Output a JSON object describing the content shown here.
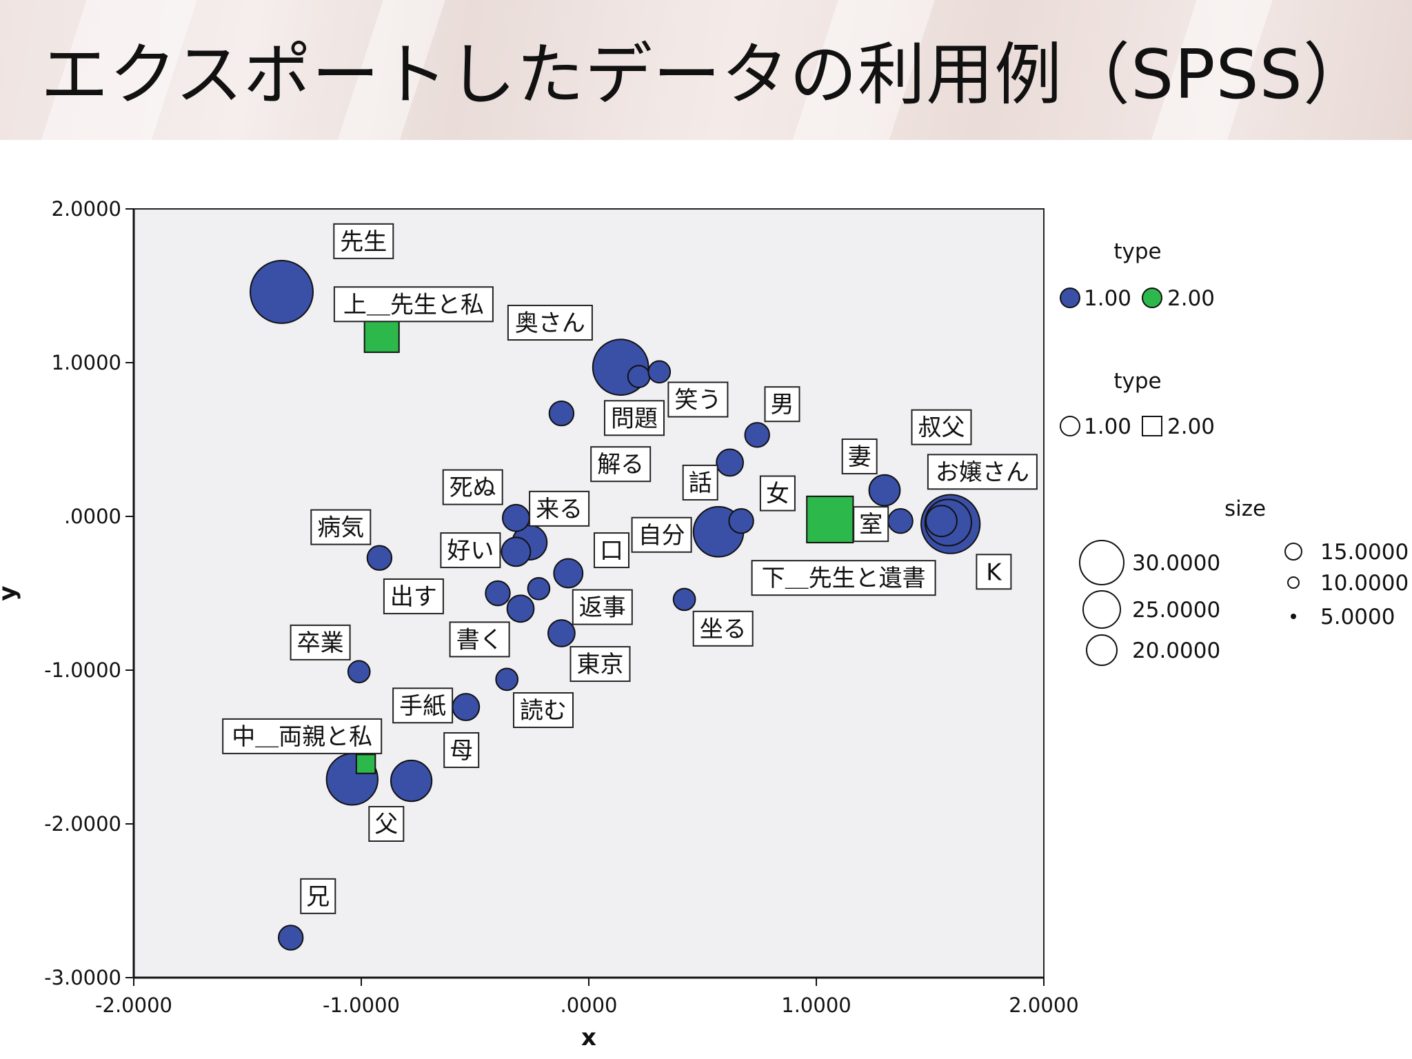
{
  "slide": {
    "title": "エクスポートしたデータの利用例（SPSS）"
  },
  "colors": {
    "type1_fill": "#3a4fa6",
    "type2_fill": "#2db84b",
    "plot_bg": "#f0f0f2",
    "outline": "#111111"
  },
  "chart_data": {
    "type": "scatter",
    "title": "",
    "xlabel": "x",
    "ylabel": "y",
    "xlim": [
      -2,
      2
    ],
    "ylim": [
      -3,
      2
    ],
    "xticks": [
      "-2.0000",
      "-1.0000",
      ".0000",
      "1.0000",
      "2.0000"
    ],
    "yticks": [
      "2.0000",
      "1.0000",
      ".0000",
      "-1.0000",
      "-2.0000",
      "-3.0000"
    ],
    "points": [
      {
        "x": -1.35,
        "y": 1.46,
        "size": 33,
        "type": 1
      },
      {
        "x": -0.91,
        "y": 1.18,
        "size": 10,
        "type": 2
      },
      {
        "x": 0.14,
        "y": 0.97,
        "size": 26,
        "type": 1
      },
      {
        "x": 0.22,
        "y": 0.91,
        "size": 4,
        "type": 1
      },
      {
        "x": 0.31,
        "y": 0.94,
        "size": 4,
        "type": 1
      },
      {
        "x": -0.12,
        "y": 0.67,
        "size": 5,
        "type": 1
      },
      {
        "x": 0.74,
        "y": 0.53,
        "size": 5,
        "type": 1
      },
      {
        "x": 0.62,
        "y": 0.35,
        "size": 6,
        "type": 1
      },
      {
        "x": 1.3,
        "y": 0.17,
        "size": 8,
        "type": 1
      },
      {
        "x": 1.37,
        "y": -0.03,
        "size": 5,
        "type": 1
      },
      {
        "x": 1.59,
        "y": -0.05,
        "size": 29,
        "type": 1
      },
      {
        "x": 1.58,
        "y": -0.04,
        "size": 18,
        "type": 1
      },
      {
        "x": 1.55,
        "y": -0.03,
        "size": 8,
        "type": 1
      },
      {
        "x": 0.57,
        "y": -0.1,
        "size": 21,
        "type": 1
      },
      {
        "x": 0.67,
        "y": -0.03,
        "size": 5,
        "type": 1
      },
      {
        "x": 1.06,
        "y": -0.02,
        "size": 18,
        "type": 2
      },
      {
        "x": -0.32,
        "y": -0.01,
        "size": 6,
        "type": 1
      },
      {
        "x": -0.26,
        "y": -0.17,
        "size": 10,
        "type": 1
      },
      {
        "x": -0.32,
        "y": -0.23,
        "size": 7,
        "type": 1
      },
      {
        "x": -0.92,
        "y": -0.27,
        "size": 5,
        "type": 1
      },
      {
        "x": -0.09,
        "y": -0.37,
        "size": 7,
        "type": 1
      },
      {
        "x": -0.4,
        "y": -0.5,
        "size": 5,
        "type": 1
      },
      {
        "x": -0.22,
        "y": -0.47,
        "size": 4,
        "type": 1
      },
      {
        "x": -0.3,
        "y": -0.6,
        "size": 6,
        "type": 1
      },
      {
        "x": 0.42,
        "y": -0.54,
        "size": 4,
        "type": 1
      },
      {
        "x": -0.12,
        "y": -0.76,
        "size": 6,
        "type": 1
      },
      {
        "x": -1.01,
        "y": -1.01,
        "size": 4,
        "type": 1
      },
      {
        "x": -0.36,
        "y": -1.06,
        "size": 4,
        "type": 1
      },
      {
        "x": -0.54,
        "y": -1.24,
        "size": 6,
        "type": 1
      },
      {
        "x": -1.04,
        "y": -1.71,
        "size": 22,
        "type": 1
      },
      {
        "x": -0.78,
        "y": -1.72,
        "size": 14,
        "type": 1
      },
      {
        "x": -0.98,
        "y": -1.61,
        "size": 3,
        "type": 2
      },
      {
        "x": -1.31,
        "y": -2.74,
        "size": 5,
        "type": 1
      }
    ],
    "labels": [
      {
        "text": "先生",
        "x": -0.99,
        "y": 1.79
      },
      {
        "text": "上＿先生と私",
        "x": -0.77,
        "y": 1.38
      },
      {
        "text": "奥さん",
        "x": -0.17,
        "y": 1.26
      },
      {
        "text": "笑う",
        "x": 0.48,
        "y": 0.76
      },
      {
        "text": "男",
        "x": 0.85,
        "y": 0.73
      },
      {
        "text": "問題",
        "x": 0.2,
        "y": 0.64
      },
      {
        "text": "叔父",
        "x": 1.55,
        "y": 0.58
      },
      {
        "text": "解る",
        "x": 0.14,
        "y": 0.34
      },
      {
        "text": "妻",
        "x": 1.19,
        "y": 0.39
      },
      {
        "text": "お嬢さん",
        "x": 1.73,
        "y": 0.29
      },
      {
        "text": "話",
        "x": 0.49,
        "y": 0.22
      },
      {
        "text": "女",
        "x": 0.83,
        "y": 0.15
      },
      {
        "text": "死ぬ",
        "x": -0.51,
        "y": 0.19
      },
      {
        "text": "来る",
        "x": -0.13,
        "y": 0.05
      },
      {
        "text": "病気",
        "x": -1.09,
        "y": -0.07
      },
      {
        "text": "室",
        "x": 1.24,
        "y": -0.05
      },
      {
        "text": "自分",
        "x": 0.32,
        "y": -0.12
      },
      {
        "text": "好い",
        "x": -0.52,
        "y": -0.22
      },
      {
        "text": "口",
        "x": 0.1,
        "y": -0.22
      },
      {
        "text": "下＿先生と遺書",
        "x": 1.12,
        "y": -0.4
      },
      {
        "text": "K",
        "x": 1.78,
        "y": -0.36
      },
      {
        "text": "出す",
        "x": -0.77,
        "y": -0.52
      },
      {
        "text": "返事",
        "x": 0.06,
        "y": -0.59
      },
      {
        "text": "坐る",
        "x": 0.59,
        "y": -0.73
      },
      {
        "text": "卒業",
        "x": -1.18,
        "y": -0.82
      },
      {
        "text": "書く",
        "x": -0.48,
        "y": -0.8
      },
      {
        "text": "東京",
        "x": 0.05,
        "y": -0.96
      },
      {
        "text": "手紙",
        "x": -0.73,
        "y": -1.23
      },
      {
        "text": "読む",
        "x": -0.2,
        "y": -1.26
      },
      {
        "text": "中＿両親と私",
        "x": -1.26,
        "y": -1.43
      },
      {
        "text": "母",
        "x": -0.56,
        "y": -1.52
      },
      {
        "text": "父",
        "x": -0.89,
        "y": -2.0
      },
      {
        "text": "兄",
        "x": -1.19,
        "y": -2.47
      }
    ],
    "legend": {
      "placement": "right",
      "fill_title": "type",
      "fill_entries": [
        "1.00",
        "2.00"
      ],
      "shape_title": "type",
      "shape_entries": [
        "1.00",
        "2.00"
      ],
      "size_title": "size",
      "size_entries": [
        {
          "label": "30.0000",
          "value": 30
        },
        {
          "label": "25.0000",
          "value": 25
        },
        {
          "label": "20.0000",
          "value": 20
        },
        {
          "label": "15.0000",
          "value": 15
        },
        {
          "label": "10.0000",
          "value": 10
        },
        {
          "label": "5.0000",
          "value": 5
        }
      ]
    }
  }
}
